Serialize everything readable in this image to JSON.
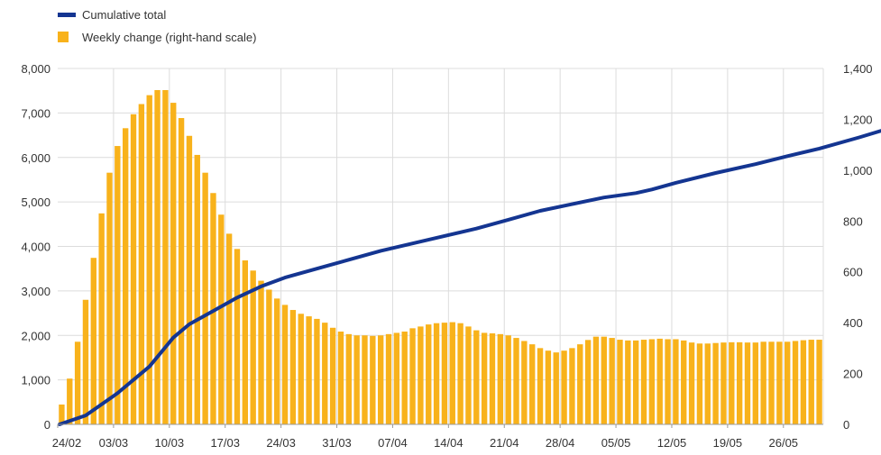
{
  "chart_data": {
    "type": "bar",
    "legend": {
      "placement": "top-left",
      "entries": [
        {
          "key": "line",
          "label": "Cumulative total"
        },
        {
          "key": "bars",
          "label": "Weekly change (right-hand scale)"
        }
      ]
    },
    "colors": {
      "line": "#143591",
      "bars": "#f8b21b",
      "grid": "#dcdcdc",
      "axis": "#999999"
    },
    "grid": true,
    "x_tick_labels": [
      "24/02",
      "03/03",
      "10/03",
      "17/03",
      "24/03",
      "31/03",
      "07/04",
      "14/04",
      "21/04",
      "28/04",
      "05/05",
      "12/05",
      "19/05",
      "26/05"
    ],
    "x_days_range": [
      0,
      98
    ],
    "left_axis": {
      "ylim": [
        0,
        8000
      ],
      "ticks": [
        0,
        1000,
        2000,
        3000,
        4000,
        5000,
        6000,
        7000,
        8000
      ],
      "tick_labels": [
        "0",
        "1,000",
        "2,000",
        "3,000",
        "4,000",
        "5,000",
        "6,000",
        "7,000",
        "8,000"
      ]
    },
    "right_axis": {
      "ylim": [
        0,
        1400
      ],
      "ticks": [
        0,
        200,
        400,
        600,
        800,
        1000,
        1200,
        1400
      ],
      "tick_labels": [
        "0",
        "200",
        "400",
        "600",
        "800",
        "1,000",
        "1,200",
        "1,400"
      ]
    },
    "series": [
      {
        "key": "bars",
        "label": "Weekly change (right-hand scale)",
        "axis": "right",
        "values": [
          78,
          180,
          325,
          490,
          655,
          830,
          990,
          1095,
          1165,
          1220,
          1260,
          1295,
          1315,
          1315,
          1265,
          1205,
          1135,
          1060,
          990,
          910,
          825,
          750,
          690,
          645,
          605,
          565,
          530,
          495,
          470,
          450,
          435,
          425,
          415,
          400,
          380,
          365,
          355,
          350,
          350,
          348,
          350,
          355,
          360,
          365,
          378,
          385,
          393,
          398,
          400,
          402,
          398,
          385,
          370,
          360,
          358,
          355,
          350,
          340,
          328,
          315,
          300,
          290,
          283,
          290,
          300,
          315,
          332,
          345,
          345,
          340,
          333,
          330,
          330,
          333,
          335,
          337,
          335,
          335,
          330,
          322,
          318,
          318,
          320,
          322,
          323,
          323,
          322,
          322,
          325,
          325,
          325,
          325,
          328,
          331,
          333,
          333
        ]
      },
      {
        "key": "line",
        "label": "Cumulative total",
        "axis": "left",
        "points": [
          [
            0,
            0
          ],
          [
            3,
            200
          ],
          [
            7,
            700
          ],
          [
            11,
            1300
          ],
          [
            14,
            1950
          ],
          [
            16,
            2250
          ],
          [
            19,
            2550
          ],
          [
            22,
            2850
          ],
          [
            25,
            3100
          ],
          [
            28,
            3300
          ],
          [
            32,
            3500
          ],
          [
            36,
            3700
          ],
          [
            40,
            3900
          ],
          [
            46,
            4150
          ],
          [
            52,
            4400
          ],
          [
            56,
            4600
          ],
          [
            60,
            4800
          ],
          [
            64,
            4950
          ],
          [
            68,
            5100
          ],
          [
            72,
            5200
          ],
          [
            74,
            5280
          ],
          [
            77,
            5430
          ],
          [
            82,
            5650
          ],
          [
            87,
            5850
          ],
          [
            91,
            6030
          ],
          [
            95,
            6200
          ],
          [
            100,
            6450
          ],
          [
            105,
            6720
          ],
          [
            109,
            6950
          ],
          [
            110,
            7000
          ]
        ]
      }
    ]
  }
}
